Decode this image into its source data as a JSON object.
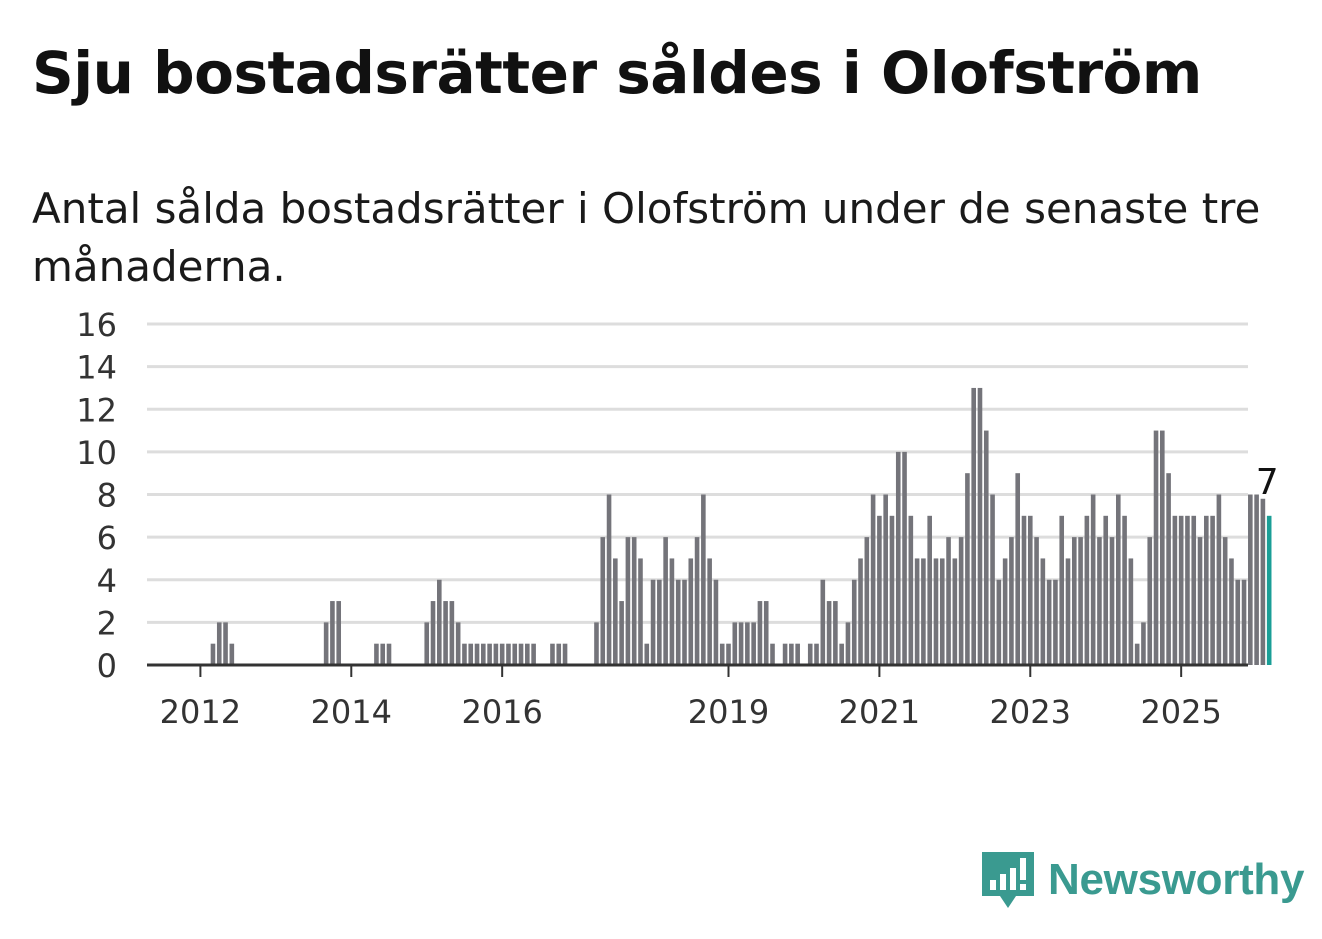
{
  "title": "Sju bostadsrätter såldes i Olofström",
  "subtitle": "Antal sålda bostadsrätter i Olofström under de senaste tre månaderna.",
  "brand": {
    "name": "Newsworthy",
    "color": "#3a9a90",
    "icon": "newsworthy-logo-icon"
  },
  "colors": {
    "bar": "#74747a",
    "highlight": "#1a9e96",
    "grid": "#dddddd",
    "axis": "#333333"
  },
  "chart_data": {
    "type": "bar",
    "title": "Sju bostadsrätter såldes i Olofström",
    "subtitle": "Antal sålda bostadsrätter i Olofström under de senaste tre månaderna.",
    "xlabel": "",
    "ylabel": "",
    "ylim": [
      0,
      16
    ],
    "yticks": [
      0,
      2,
      4,
      6,
      8,
      10,
      12,
      14,
      16
    ],
    "xtick_labels": [
      "2012",
      "2014",
      "2016",
      "2019",
      "2021",
      "2023",
      "2025"
    ],
    "start_month": "2011-05",
    "grid": true,
    "highlight_last": true,
    "last_value_label": "7",
    "values": [
      0,
      0,
      0,
      0,
      0,
      0,
      0,
      0,
      0,
      0,
      1,
      2,
      2,
      1,
      0,
      0,
      0,
      0,
      0,
      0,
      0,
      0,
      0,
      0,
      0,
      0,
      0,
      0,
      2,
      3,
      3,
      0,
      0,
      0,
      0,
      0,
      1,
      1,
      1,
      0,
      0,
      0,
      0,
      0,
      2,
      3,
      4,
      3,
      3,
      2,
      1,
      1,
      1,
      1,
      1,
      1,
      1,
      1,
      1,
      1,
      1,
      1,
      0,
      0,
      1,
      1,
      1,
      0,
      0,
      0,
      0,
      2,
      6,
      8,
      5,
      3,
      6,
      6,
      5,
      1,
      4,
      4,
      6,
      5,
      4,
      4,
      5,
      6,
      8,
      5,
      4,
      1,
      1,
      2,
      2,
      2,
      2,
      3,
      3,
      1,
      0,
      1,
      1,
      1,
      0,
      1,
      1,
      4,
      3,
      3,
      1,
      2,
      4,
      5,
      6,
      8,
      7,
      8,
      7,
      10,
      10,
      7,
      5,
      5,
      7,
      5,
      5,
      6,
      5,
      6,
      9,
      13,
      13,
      11,
      8,
      4,
      5,
      6,
      9,
      7,
      7,
      6,
      5,
      4,
      4,
      7,
      5,
      6,
      6,
      7,
      8,
      6,
      7,
      6,
      8,
      7,
      5,
      1,
      2,
      6,
      11,
      11,
      9,
      7,
      7,
      7,
      7,
      6,
      7,
      7,
      8,
      6,
      5,
      4,
      4,
      8,
      8,
      7.8,
      7
    ]
  }
}
